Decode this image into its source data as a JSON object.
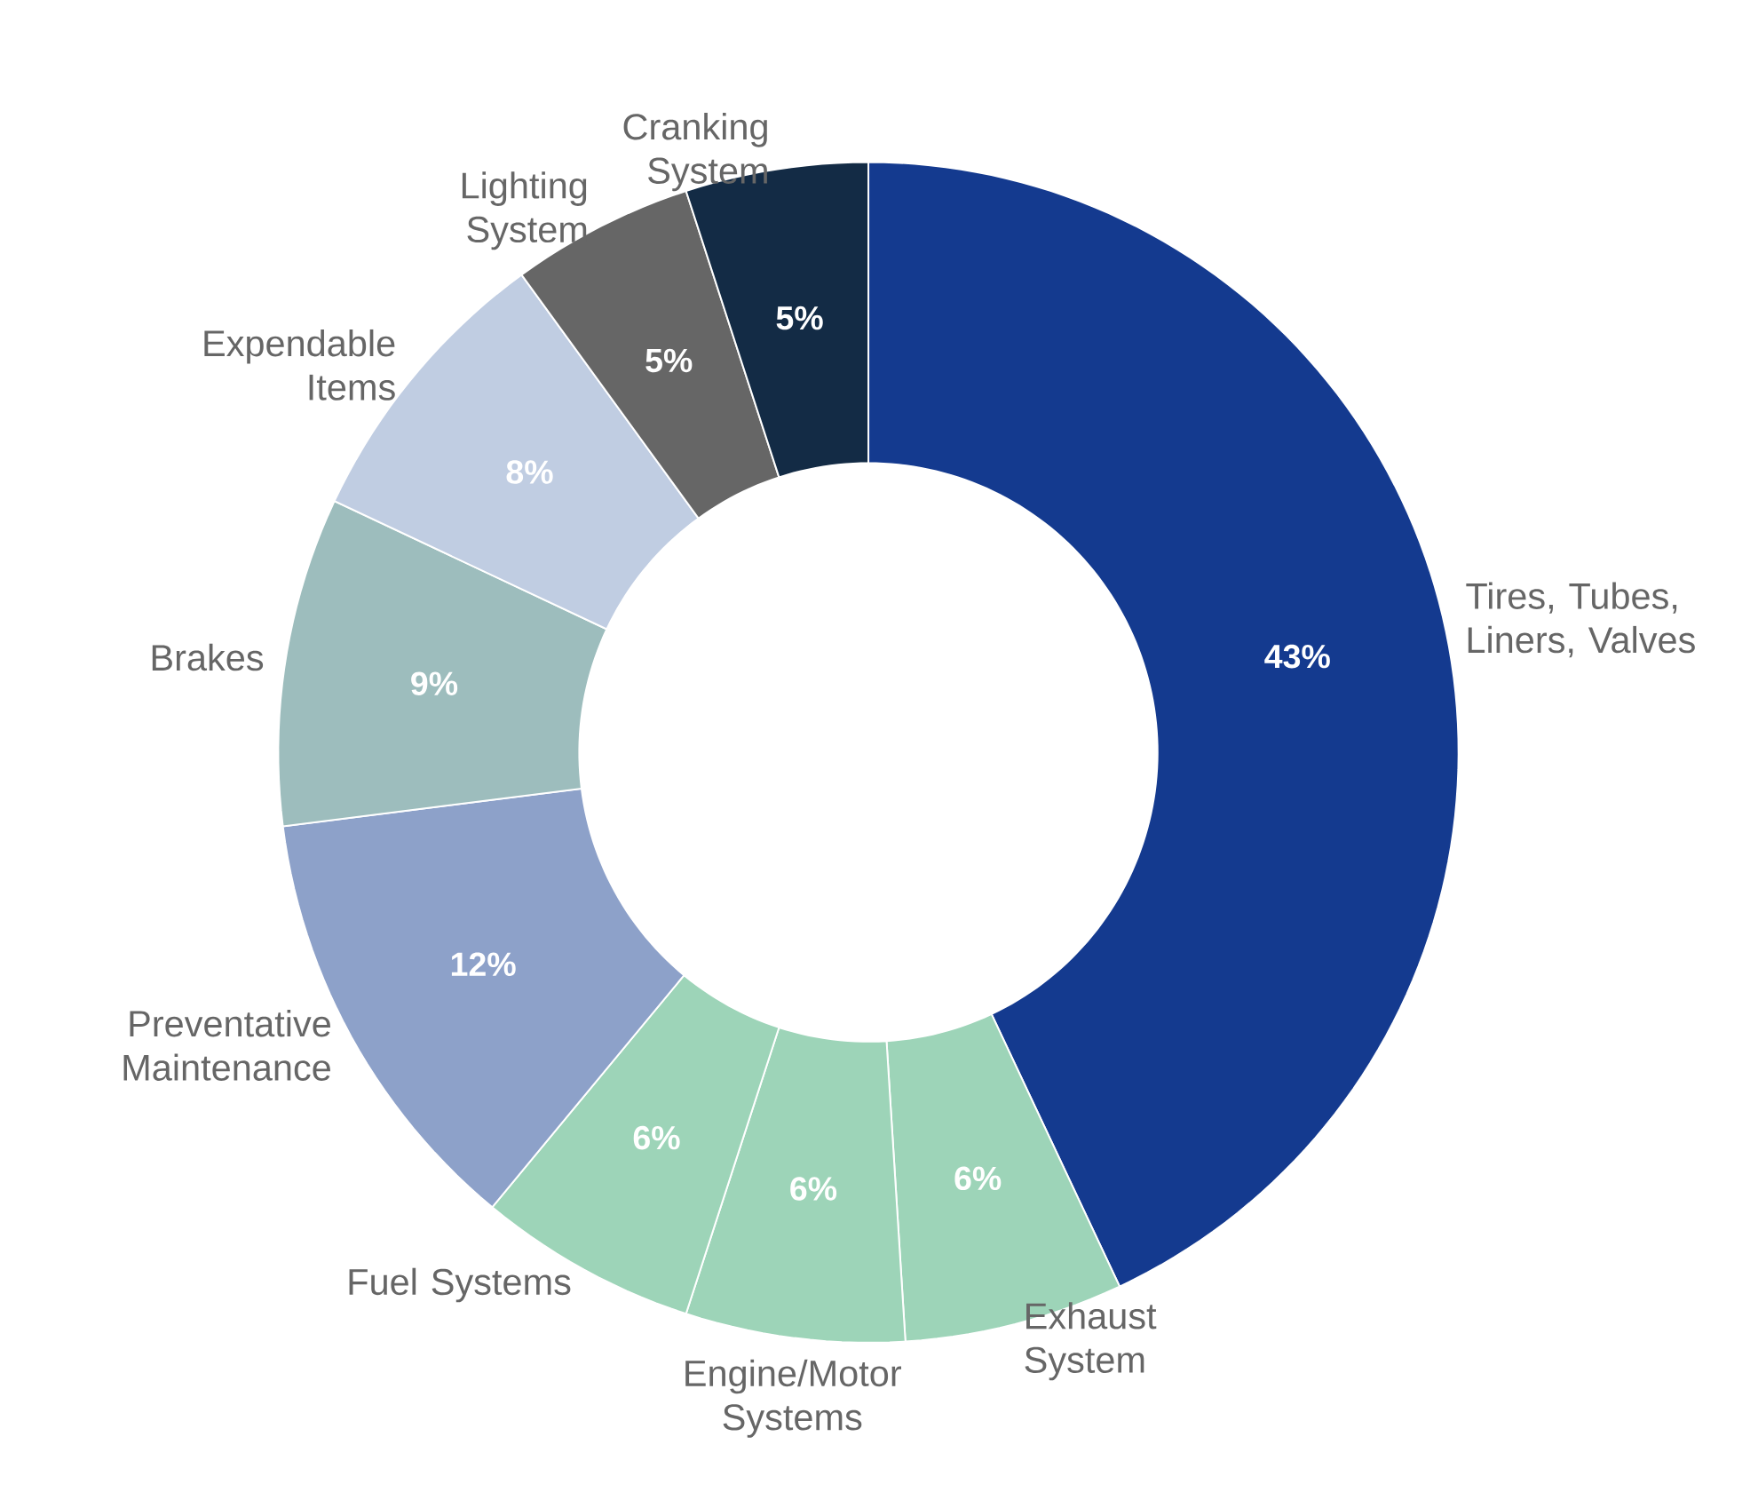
{
  "chart_data": {
    "type": "donut",
    "categories": [
      "Tires, Tubes, Liners, Valves",
      "Exhaust System",
      "Engine/Motor Systems",
      "Fuel Systems",
      "Preventative Maintenance",
      "Brakes",
      "Expendable Items",
      "Lighting System",
      "Cranking System"
    ],
    "values": [
      43,
      6,
      6,
      6,
      12,
      9,
      8,
      5,
      5
    ],
    "value_labels": [
      "43%",
      "6%",
      "6%",
      "6%",
      "12%",
      "9%",
      "8%",
      "5%",
      "5%"
    ],
    "colors": [
      "#143a8f",
      "#9dd4b8",
      "#9dd4b8",
      "#9dd4b8",
      "#8da1c9",
      "#9dbdbd",
      "#c0cde2",
      "#666666",
      "#132b45"
    ]
  }
}
